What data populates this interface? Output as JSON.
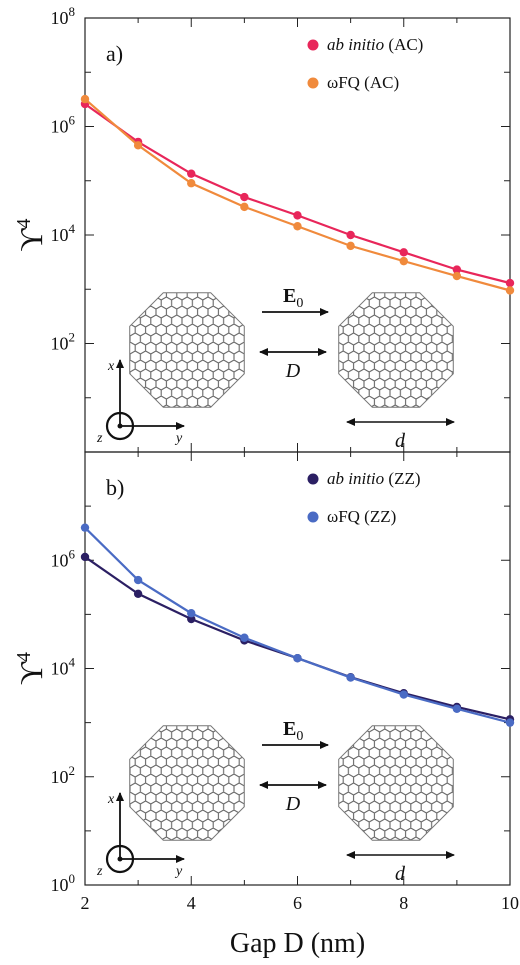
{
  "chart_data": [
    {
      "type": "line",
      "panel_label": "a)",
      "y_scale": "log",
      "ylim_exp": [
        0,
        8
      ],
      "y_tick_labels": [
        {
          "exp": 2,
          "base": "10",
          "sup": "2"
        },
        {
          "exp": 4,
          "base": "10",
          "sup": "4"
        },
        {
          "exp": 6,
          "base": "10",
          "sup": "6"
        },
        {
          "exp": 8,
          "base": "10",
          "sup": "8"
        }
      ],
      "ylabel": {
        "base": "ϒ",
        "sup": "4"
      },
      "x": [
        2,
        3,
        4,
        5,
        6,
        7,
        8,
        9,
        10
      ],
      "series": [
        {
          "name_italic": "ab initio",
          "name_rest": " (AC)",
          "color": "#e8265a",
          "values": [
            2600000.0,
            520000.0,
            135000.0,
            50000.0,
            23000.0,
            10000.0,
            4800.0,
            2300.0,
            1300.0
          ]
        },
        {
          "name_italic": "",
          "name_rest": "ωFQ (AC)",
          "color": "#f08a3c",
          "values": [
            3200000.0,
            450000.0,
            90000.0,
            33000.0,
            14500.0,
            6300.0,
            3300.0,
            1750.0,
            950.0
          ]
        }
      ],
      "legend_position": "top-right",
      "inset": {
        "field": "E",
        "field_sub": "0",
        "gap": "D",
        "size": "d",
        "axes": [
          "x",
          "y",
          "z"
        ],
        "edge": "AC"
      }
    },
    {
      "type": "line",
      "panel_label": "b)",
      "y_scale": "log",
      "ylim_exp": [
        0,
        8
      ],
      "y_tick_labels": [
        {
          "exp": 0,
          "base": "10",
          "sup": "0"
        },
        {
          "exp": 2,
          "base": "10",
          "sup": "2"
        },
        {
          "exp": 4,
          "base": "10",
          "sup": "4"
        },
        {
          "exp": 6,
          "base": "10",
          "sup": "6"
        }
      ],
      "ylabel": {
        "base": "ϒ",
        "sup": "4"
      },
      "xlabel": "Gap D (nm)",
      "x_tick_labels": [
        "2",
        "4",
        "6",
        "8",
        "10"
      ],
      "x": [
        2,
        3,
        4,
        5,
        6,
        7,
        8,
        9,
        10
      ],
      "series": [
        {
          "name_italic": "ab initio",
          "name_rest": " (ZZ)",
          "color": "#2b1f63",
          "values": [
            1150000.0,
            240000.0,
            82000.0,
            33000.0,
            15500.0,
            6900.0,
            3500.0,
            1950.0,
            1150.0
          ]
        },
        {
          "name_italic": "",
          "name_rest": "ωFQ (ZZ)",
          "color": "#4a6bc4",
          "values": [
            4000000.0,
            430000.0,
            105000.0,
            37000.0,
            15500.0,
            6800.0,
            3300.0,
            1800.0,
            1000.0
          ]
        }
      ],
      "legend_position": "top-right",
      "inset": {
        "field": "E",
        "field_sub": "0",
        "gap": "D",
        "size": "d",
        "axes": [
          "x",
          "y",
          "z"
        ],
        "edge": "ZZ"
      }
    }
  ]
}
